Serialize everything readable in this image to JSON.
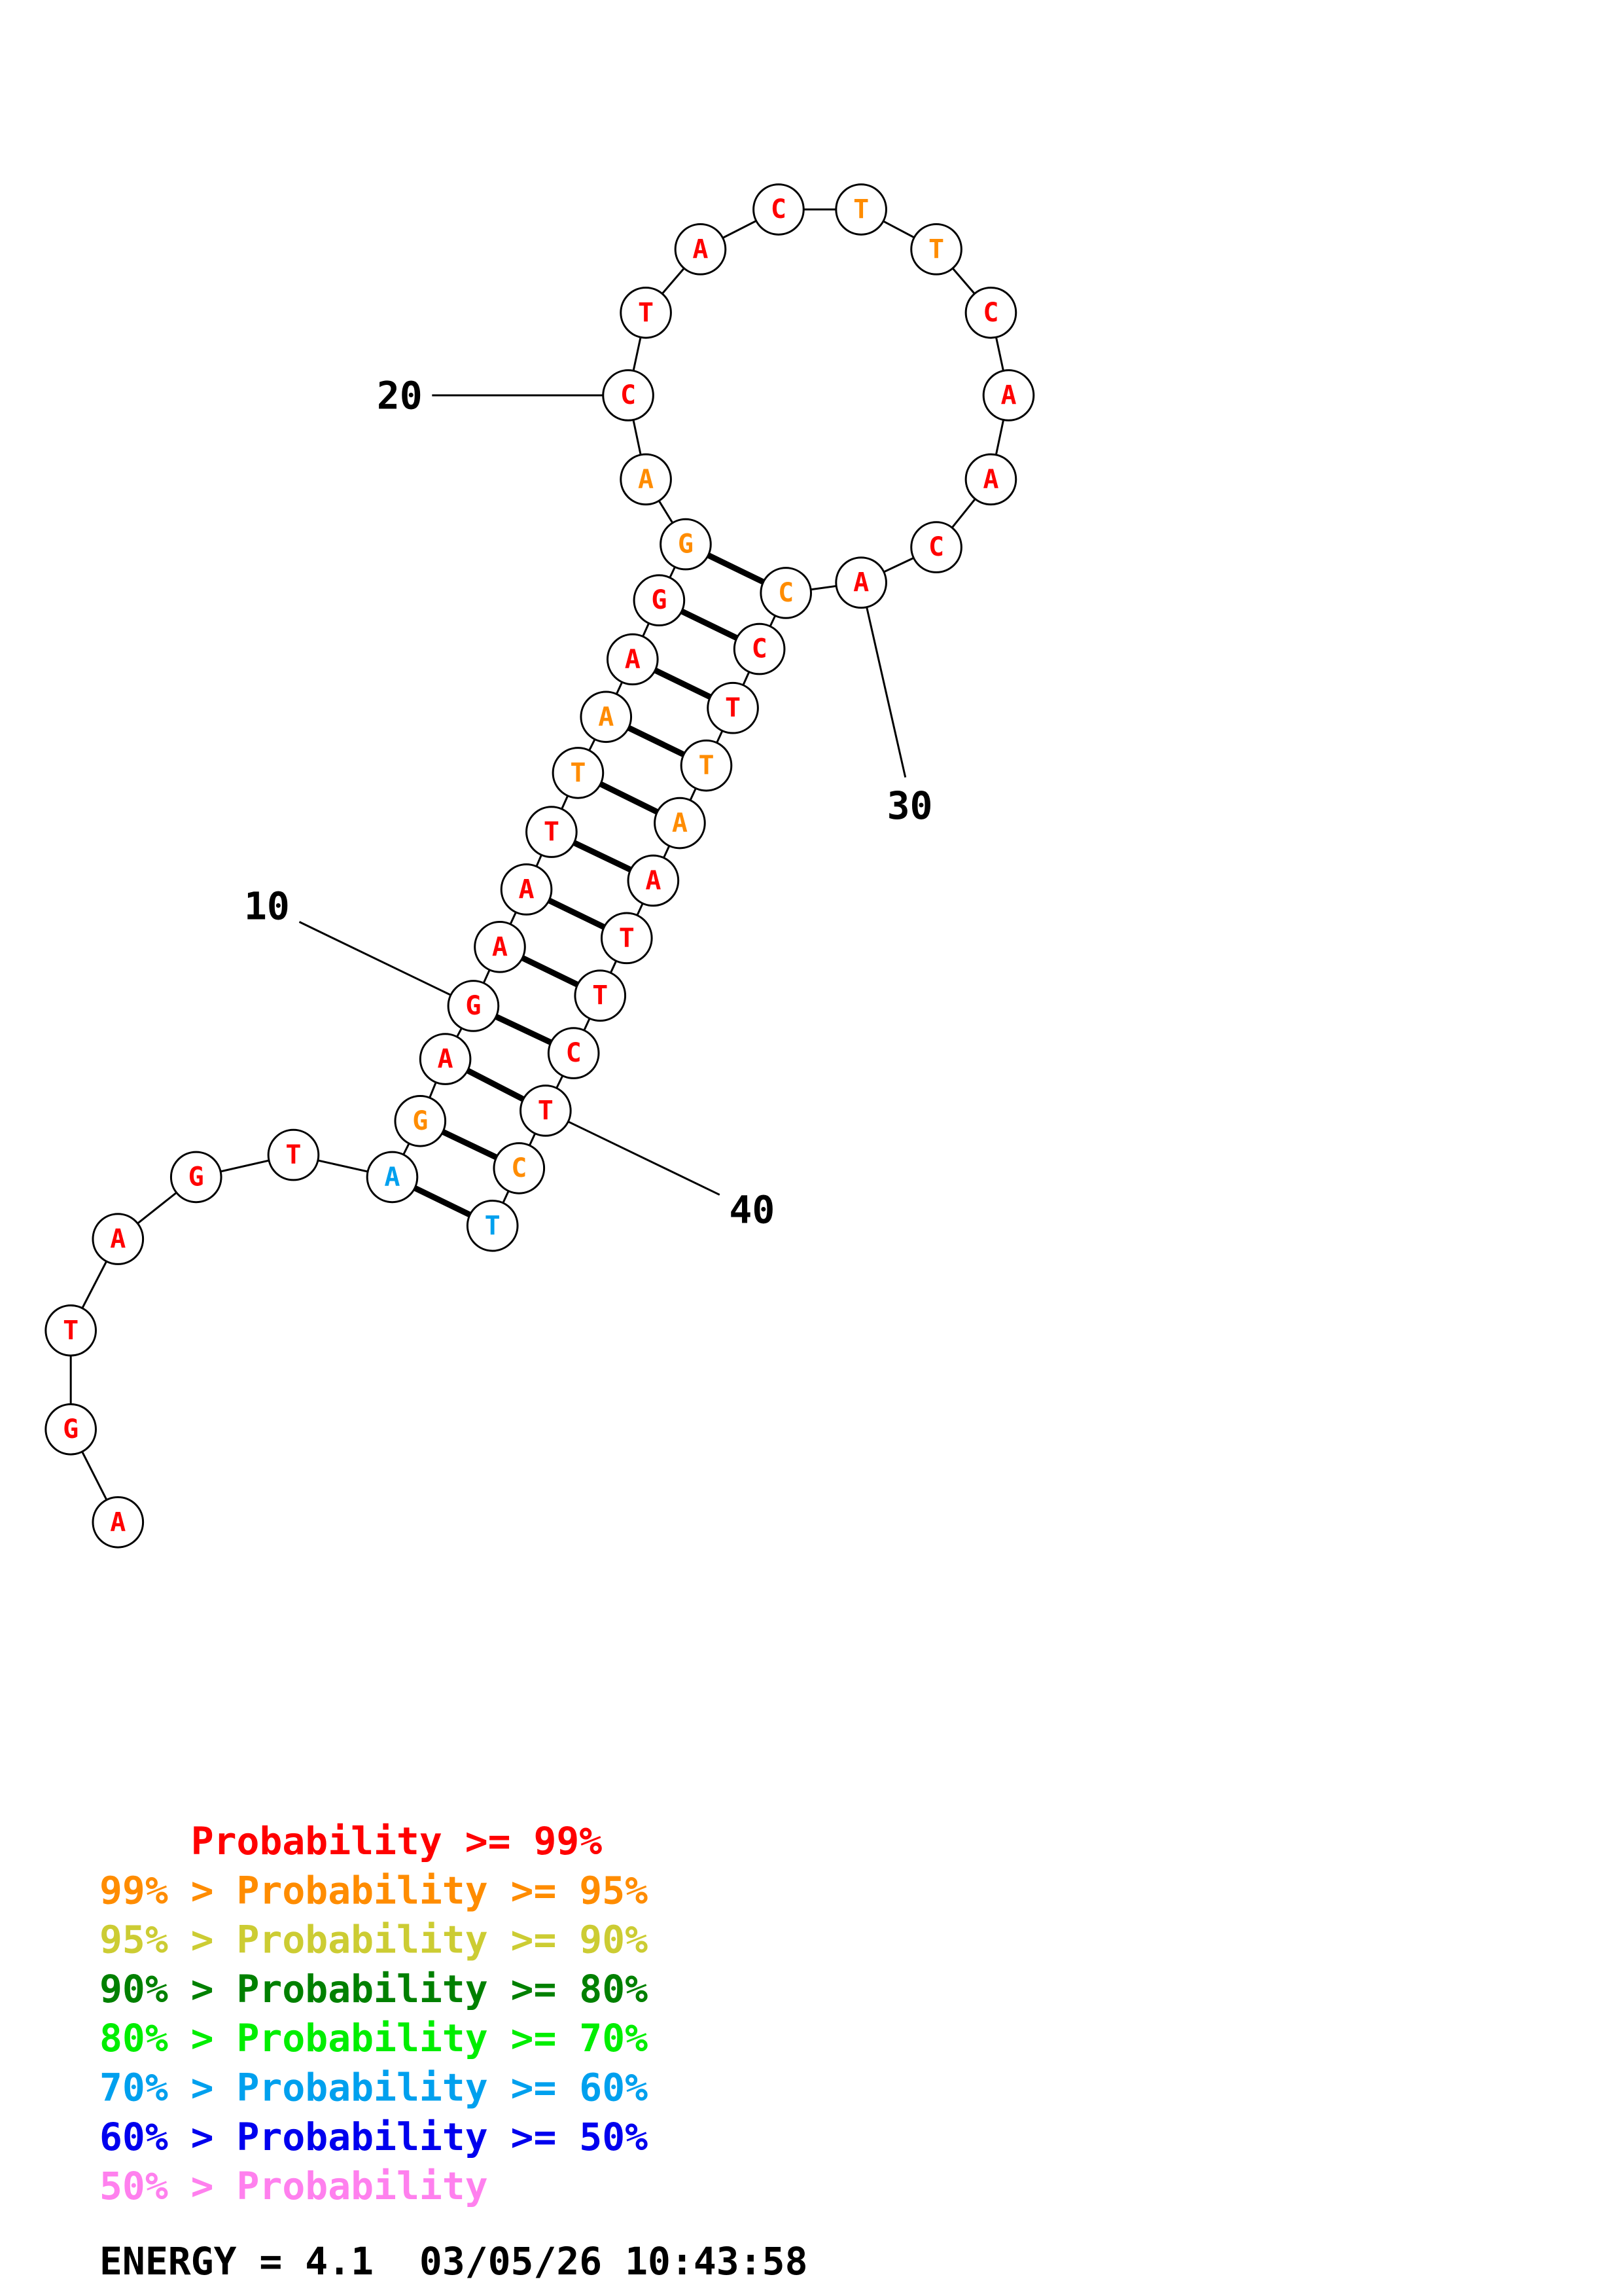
{
  "colors": {
    "p99": "#ff0000",
    "p95": "#ff8c00",
    "p90": "#cccc33",
    "p80": "#008000",
    "p70": "#00ee00",
    "p60": "#00a0ee",
    "p50": "#0000ee",
    "plow": "#ff80ee"
  },
  "sequence": [
    {
      "base": "A",
      "level": "p99"
    },
    {
      "base": "G",
      "level": "p99"
    },
    {
      "base": "T",
      "level": "p99"
    },
    {
      "base": "A",
      "level": "p99"
    },
    {
      "base": "G",
      "level": "p99"
    },
    {
      "base": "T",
      "level": "p99"
    },
    {
      "base": "A",
      "level": "p60"
    },
    {
      "base": "G",
      "level": "p95"
    },
    {
      "base": "A",
      "level": "p99"
    },
    {
      "base": "G",
      "level": "p99"
    },
    {
      "base": "A",
      "level": "p99"
    },
    {
      "base": "A",
      "level": "p99"
    },
    {
      "base": "T",
      "level": "p99"
    },
    {
      "base": "T",
      "level": "p95"
    },
    {
      "base": "A",
      "level": "p95"
    },
    {
      "base": "A",
      "level": "p99"
    },
    {
      "base": "G",
      "level": "p99"
    },
    {
      "base": "G",
      "level": "p95"
    },
    {
      "base": "A",
      "level": "p95"
    },
    {
      "base": "C",
      "level": "p99"
    },
    {
      "base": "T",
      "level": "p99"
    },
    {
      "base": "A",
      "level": "p99"
    },
    {
      "base": "C",
      "level": "p99"
    },
    {
      "base": "T",
      "level": "p95"
    },
    {
      "base": "T",
      "level": "p95"
    },
    {
      "base": "C",
      "level": "p99"
    },
    {
      "base": "A",
      "level": "p99"
    },
    {
      "base": "A",
      "level": "p99"
    },
    {
      "base": "C",
      "level": "p99"
    },
    {
      "base": "A",
      "level": "p99"
    },
    {
      "base": "C",
      "level": "p95"
    },
    {
      "base": "C",
      "level": "p99"
    },
    {
      "base": "T",
      "level": "p99"
    },
    {
      "base": "T",
      "level": "p95"
    },
    {
      "base": "A",
      "level": "p95"
    },
    {
      "base": "A",
      "level": "p99"
    },
    {
      "base": "T",
      "level": "p99"
    },
    {
      "base": "T",
      "level": "p99"
    },
    {
      "base": "C",
      "level": "p99"
    },
    {
      "base": "T",
      "level": "p99"
    },
    {
      "base": "C",
      "level": "p95"
    },
    {
      "base": "T",
      "level": "p60"
    }
  ],
  "pairs": [
    [
      7,
      42
    ],
    [
      8,
      41
    ],
    [
      9,
      40
    ],
    [
      10,
      39
    ],
    [
      11,
      38
    ],
    [
      12,
      37
    ],
    [
      13,
      36
    ],
    [
      14,
      35
    ],
    [
      15,
      34
    ],
    [
      16,
      33
    ],
    [
      17,
      32
    ],
    [
      18,
      31
    ]
  ],
  "position_labels": [
    {
      "text": "10",
      "index": 10
    },
    {
      "text": "20",
      "index": 20
    },
    {
      "text": "30",
      "index": 30
    },
    {
      "text": "40",
      "index": 40
    }
  ],
  "legend": [
    {
      "prefix": "    ",
      "rest": "Probability >= 99%",
      "level": "p99"
    },
    {
      "prefix": "99% > ",
      "rest": "Probability >= 95%",
      "level": "p95"
    },
    {
      "prefix": "95% > ",
      "rest": "Probability >= 90%",
      "level": "p90"
    },
    {
      "prefix": "90% > ",
      "rest": "Probability >= 80%",
      "level": "p80"
    },
    {
      "prefix": "80% > ",
      "rest": "Probability >= 70%",
      "level": "p70"
    },
    {
      "prefix": "70% > ",
      "rest": "Probability >= 60%",
      "level": "p60"
    },
    {
      "prefix": "60% > ",
      "rest": "Probability >= 50%",
      "level": "p50"
    },
    {
      "prefix": "50% > ",
      "rest": "Probability",
      "level": "plow"
    }
  ],
  "energy": "ENERGY = 4.1  03/05/26 10:43:58"
}
